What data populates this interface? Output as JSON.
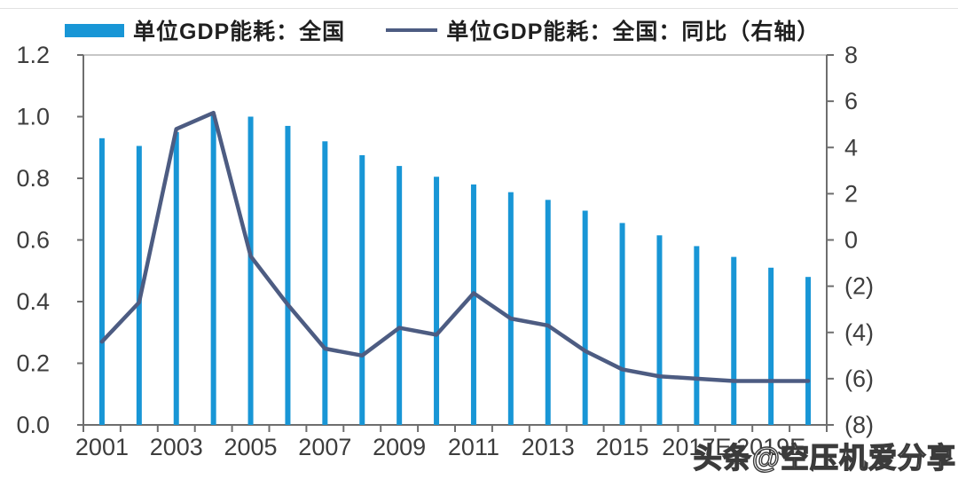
{
  "legend": {
    "items": [
      {
        "label": "单位GDP能耗：全国",
        "type": "bar",
        "color": "#1896d6"
      },
      {
        "label": "单位GDP能耗：全国：同比（右轴）",
        "type": "line",
        "color": "#4d5c82"
      }
    ]
  },
  "watermark": {
    "text": "头条@空压机爱分享"
  },
  "chart_data": {
    "type": "bar+line",
    "title": "",
    "categories": [
      "2001",
      "2002",
      "2003",
      "2004",
      "2005",
      "2006",
      "2007",
      "2008",
      "2009",
      "2010",
      "2011",
      "2012",
      "2013",
      "2014",
      "2015",
      "2016",
      "2017",
      "2018",
      "2019",
      "2020"
    ],
    "series": [
      {
        "name": "单位GDP能耗：全国",
        "type": "bar",
        "axis": "left",
        "color": "#1896d6",
        "values": [
          0.93,
          0.905,
          0.95,
          1.005,
          1.0,
          0.97,
          0.92,
          0.875,
          0.84,
          0.805,
          0.78,
          0.755,
          0.73,
          0.695,
          0.655,
          0.615,
          0.58,
          0.545,
          0.51,
          0.48
        ]
      },
      {
        "name": "单位GDP能耗：全国：同比（右轴）",
        "type": "line",
        "axis": "right",
        "color": "#4d5c82",
        "values": [
          -4.4,
          -2.7,
          4.8,
          5.5,
          -0.7,
          -2.8,
          -4.7,
          -5.0,
          -3.8,
          -4.1,
          -2.3,
          -3.4,
          -3.7,
          -4.8,
          -5.6,
          -5.9,
          -6.0,
          -6.1,
          -6.1,
          -6.1
        ]
      }
    ],
    "left_axis": {
      "min": 0,
      "max": 1.2,
      "step": 0.2,
      "tick_labels": [
        "1.2",
        "1.0",
        "0.8",
        "0.6",
        "0.4",
        "0.2",
        "0.0"
      ]
    },
    "right_axis": {
      "min": -8,
      "max": 8,
      "step": 2,
      "tick_labels": [
        "8",
        "6",
        "4",
        "2",
        "0",
        "(2)",
        "(4)",
        "(6)",
        "(8)"
      ],
      "negative_format": "parentheses"
    },
    "x_axis": {
      "tick_labels": [
        "2001",
        "2003",
        "2005",
        "2007",
        "2009",
        "2011",
        "2013",
        "2015",
        "2017E",
        "2019E"
      ],
      "label_every_n_years": 2
    },
    "grid": false,
    "legend_position": "top"
  }
}
